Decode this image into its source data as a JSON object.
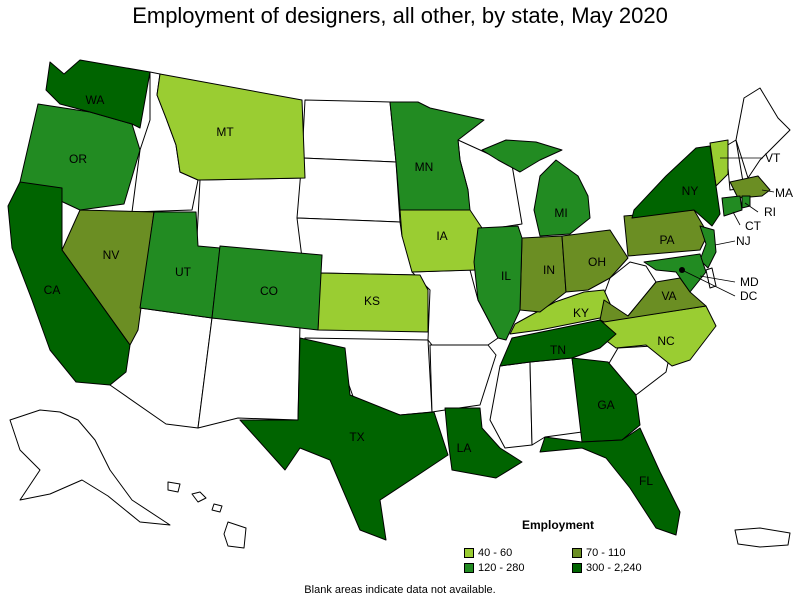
{
  "title": "Employment of designers, all other, by state, May 2020",
  "footnote": "Blank areas indicate data not available.",
  "legend": {
    "title": "Employment",
    "items": [
      {
        "label": "40 - 60",
        "color": "#9acd32"
      },
      {
        "label": "70 - 110",
        "color": "#6b8e23"
      },
      {
        "label": "120 - 280",
        "color": "#228b22"
      },
      {
        "label": "300 - 2,240",
        "color": "#006400"
      }
    ]
  },
  "colors": {
    "blank": "#ffffff",
    "40_60": "#9acd32",
    "70_110": "#6b8e23",
    "120_280": "#228b22",
    "300_2240": "#006400"
  },
  "states": {
    "WA": {
      "label": "WA",
      "bin": "300 - 2,240"
    },
    "OR": {
      "label": "OR",
      "bin": "120 - 280"
    },
    "CA": {
      "label": "CA",
      "bin": "300 - 2,240"
    },
    "NV": {
      "label": "NV",
      "bin": "70 - 110"
    },
    "MT": {
      "label": "MT",
      "bin": "40 - 60"
    },
    "UT": {
      "label": "UT",
      "bin": "120 - 280"
    },
    "CO": {
      "label": "CO",
      "bin": "120 - 280"
    },
    "KS": {
      "label": "KS",
      "bin": "40 - 60"
    },
    "MN": {
      "label": "MN",
      "bin": "120 - 280"
    },
    "IA": {
      "label": "IA",
      "bin": "40 - 60"
    },
    "TX": {
      "label": "TX",
      "bin": "300 - 2,240"
    },
    "LA": {
      "label": "LA",
      "bin": "300 - 2,240"
    },
    "IL": {
      "label": "IL",
      "bin": "120 - 280"
    },
    "MI": {
      "label": "MI",
      "bin": "120 - 280"
    },
    "IN": {
      "label": "IN",
      "bin": "70 - 110"
    },
    "OH": {
      "label": "OH",
      "bin": "70 - 110"
    },
    "KY": {
      "label": "KY",
      "bin": "40 - 60"
    },
    "TN": {
      "label": "TN",
      "bin": "300 - 2,240"
    },
    "GA": {
      "label": "GA",
      "bin": "300 - 2,240"
    },
    "FL": {
      "label": "FL",
      "bin": "300 - 2,240"
    },
    "NC": {
      "label": "NC",
      "bin": "40 - 60"
    },
    "VA": {
      "label": "VA",
      "bin": "70 - 110"
    },
    "PA": {
      "label": "PA",
      "bin": "70 - 110"
    },
    "NY": {
      "label": "NY",
      "bin": "300 - 2,240"
    },
    "NJ": {
      "label": "NJ",
      "bin": "120 - 280"
    },
    "MD": {
      "label": "MD",
      "bin": "120 - 280"
    },
    "DC": {
      "label": "DC",
      "bin": "300 - 2,240"
    },
    "VT": {
      "label": "VT",
      "bin": "40 - 60"
    },
    "MA": {
      "label": "MA",
      "bin": "70 - 110"
    },
    "CT": {
      "label": "CT",
      "bin": "120 - 280"
    },
    "RI": {
      "label": "RI",
      "bin": "120 - 280"
    }
  }
}
